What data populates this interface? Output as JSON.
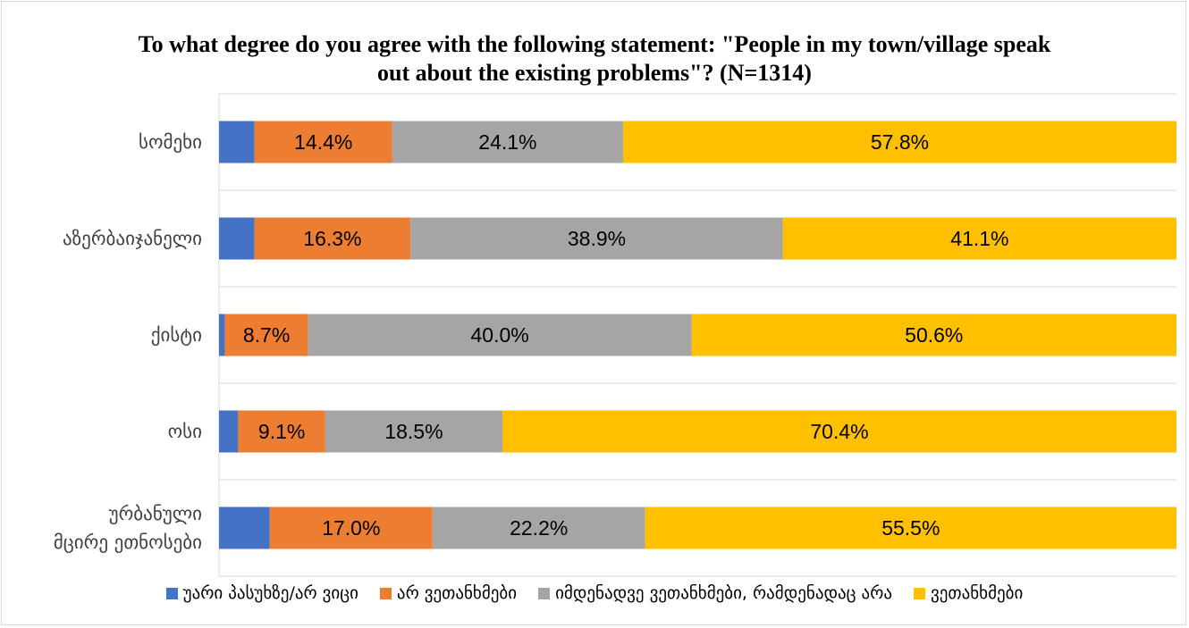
{
  "chart_data": {
    "type": "bar",
    "orientation": "horizontal",
    "stacked": "percent",
    "title": "To what degree do you agree with the following statement: \"People in my town/village speak out about the existing problems\"? (N=1314)",
    "categories": [
      "სომეხი",
      "აზერბაიჯანელი",
      "ქისტი",
      "ოსი",
      "ურბანული მცირე ეთნოსები"
    ],
    "category_lines": [
      [
        "სომეხი"
      ],
      [
        "აზერბაიჯანელი"
      ],
      [
        "ქისტი"
      ],
      [
        "ოსი"
      ],
      [
        "ურბანული",
        "მცირე ეთნოსები"
      ]
    ],
    "series": [
      {
        "name": "უარი პასუხზე/არ ვიცი",
        "color": "#4472c4",
        "values": [
          3.7,
          3.7,
          0.6,
          2.0,
          5.3
        ],
        "labels": [
          "",
          "",
          "",
          "",
          ""
        ]
      },
      {
        "name": "არ ვეთანხმები",
        "color": "#ed7d31",
        "values": [
          14.4,
          16.3,
          8.7,
          9.1,
          17.0
        ],
        "labels": [
          "14.4%",
          "16.3%",
          "8.7%",
          "9.1%",
          "17.0%"
        ]
      },
      {
        "name": "იმდენადვე ვეთანხმები, რამდენადაც არა",
        "color": "#a5a5a5",
        "values": [
          24.1,
          38.9,
          40.0,
          18.5,
          22.2
        ],
        "labels": [
          "24.1%",
          "38.9%",
          "40.0%",
          "18.5%",
          "22.2%"
        ]
      },
      {
        "name": "ვეთანხმები",
        "color": "#ffc000",
        "values": [
          57.8,
          41.1,
          50.6,
          70.4,
          55.5
        ],
        "labels": [
          "57.8%",
          "41.1%",
          "50.6%",
          "70.4%",
          "55.5%"
        ]
      }
    ],
    "xlim": [
      0,
      100
    ],
    "legend_position": "bottom",
    "grid": "horizontal"
  }
}
